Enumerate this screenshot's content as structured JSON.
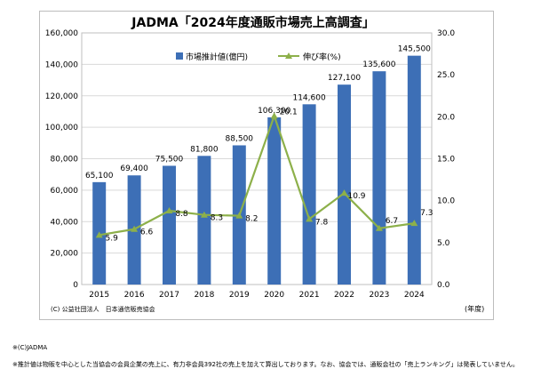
{
  "chart_data": {
    "type": "bar+line",
    "title": "JADMA「2024年度通販市場売上高調査」",
    "categories": [
      "2015",
      "2016",
      "2017",
      "2018",
      "2019",
      "2020",
      "2021",
      "2022",
      "2023",
      "2024"
    ],
    "series": [
      {
        "name": "市場推計値(億円)",
        "type": "bar",
        "axis": "left",
        "color": "#3d6fb6",
        "values": [
          65100,
          69400,
          75500,
          81800,
          88500,
          106300,
          114600,
          127100,
          135600,
          145500
        ],
        "labels": [
          "65,100",
          "69,400",
          "75,500",
          "81,800",
          "88,500",
          "106,300",
          "114,600",
          "127,100",
          "135,600",
          "145,500"
        ]
      },
      {
        "name": "伸び率(%)",
        "type": "line",
        "axis": "right",
        "color": "#8db04a",
        "values": [
          5.9,
          6.6,
          8.8,
          8.3,
          8.2,
          20.1,
          7.8,
          10.9,
          6.7,
          7.3
        ],
        "labels": [
          "5.9",
          "6.6",
          "8.8",
          "8.3",
          "8.2",
          "20.1",
          "7.8",
          "10.9",
          "6.7",
          "7.3"
        ]
      }
    ],
    "y_left": {
      "min": 0,
      "max": 160000,
      "step": 20000,
      "ticks": [
        "0",
        "20,000",
        "40,000",
        "60,000",
        "80,000",
        "100,000",
        "120,000",
        "140,000",
        "160,000"
      ]
    },
    "y_right": {
      "min": 0,
      "max": 30,
      "step": 5,
      "ticks": [
        "0.0",
        "5.0",
        "10.0",
        "15.0",
        "20.0",
        "25.0",
        "30.0"
      ]
    },
    "xlabel": "(年度)",
    "source": "(C) 公益社団法人　日本通信販売協会",
    "grid": true,
    "legend": "top-center"
  },
  "notes": {
    "copyright": "※(C)JADMA",
    "footnote": "※推計値は物販を中心とした当協会の会員企業の売上に、有力非会員392社の売上を加えて算出しております。なお、協会では、通販会社の「売上ランキング」は発表していません。"
  }
}
